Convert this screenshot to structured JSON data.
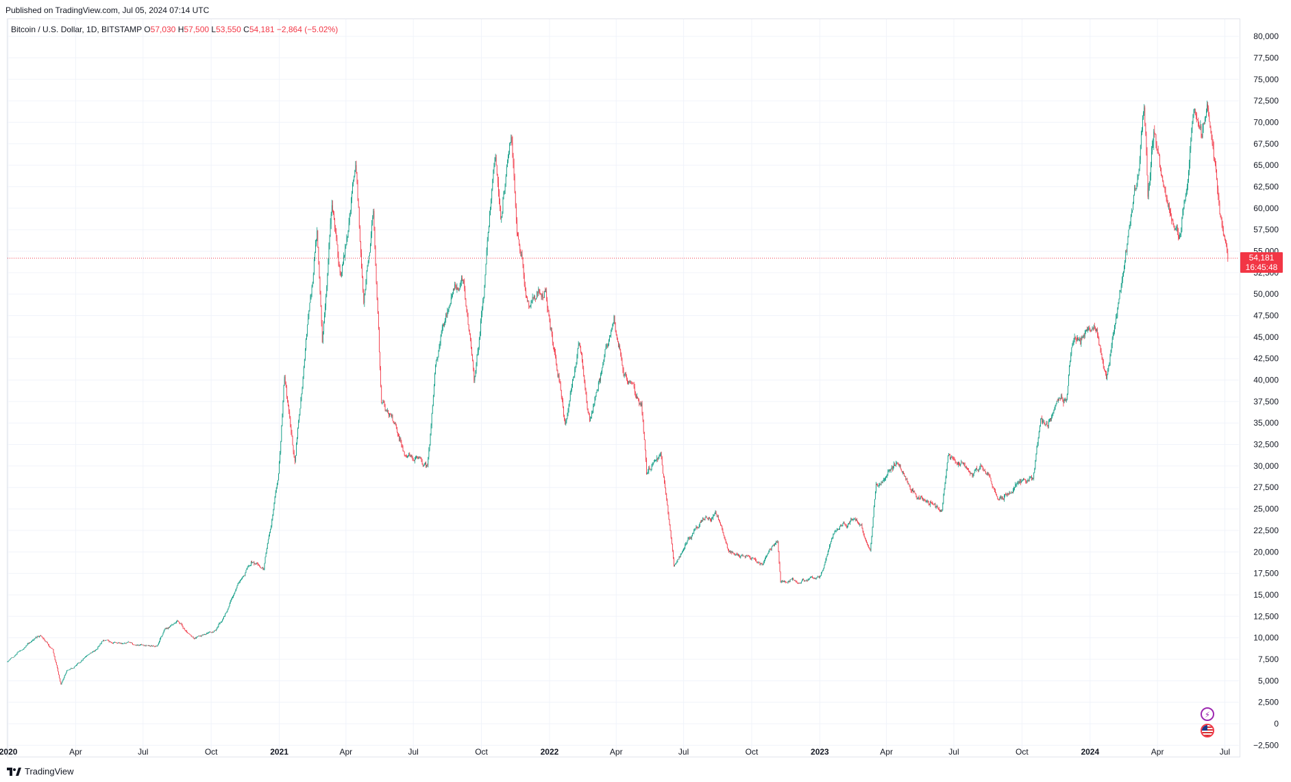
{
  "published": "Published on TradingView.com, Jul 05, 2024 07:14 UTC",
  "legend": {
    "symbol": "Bitcoin / U.S. Dollar, 1D, BITSTAMP",
    "o_label": "O",
    "o": "57,030",
    "h_label": "H",
    "h": "57,500",
    "l_label": "L",
    "l": "53,550",
    "c_label": "C",
    "c": "54,181",
    "change": "−2,864 (−5.02%)"
  },
  "price_tag": {
    "price": "54,181",
    "countdown": "16:45:48"
  },
  "footer": {
    "brand": "TradingView"
  },
  "colors": {
    "up": "#089981",
    "down": "#f23645",
    "grid": "#f0f3fa",
    "axis_text": "#131722"
  },
  "icons": [
    "tradingview-logo-icon",
    "lightning-icon",
    "us-flag-icon"
  ],
  "chart_data": {
    "type": "candlestick",
    "title": "Bitcoin / U.S. Dollar, 1D, BITSTAMP",
    "x_range": [
      "2019-12-31",
      "2024-07-20"
    ],
    "ylim": [
      -3750,
      82000
    ],
    "grid": true,
    "legend_position": "top-left",
    "y_ticks": [
      "80,000",
      "77,500",
      "75,000",
      "72,500",
      "70,000",
      "67,500",
      "65,000",
      "62,500",
      "60,000",
      "57,500",
      "55,000",
      "52,500",
      "50,000",
      "47,500",
      "45,000",
      "42,500",
      "40,000",
      "37,500",
      "35,000",
      "32,500",
      "30,000",
      "27,500",
      "25,000",
      "22,500",
      "20,000",
      "17,500",
      "15,000",
      "12,500",
      "10,000",
      "7,500",
      "5,000",
      "2,500",
      "0",
      "−2,500"
    ],
    "x_ticks": [
      {
        "label": "2020",
        "date": "2020-01-01",
        "bold": true
      },
      {
        "label": "Apr",
        "date": "2020-04-01"
      },
      {
        "label": "Jul",
        "date": "2020-07-01"
      },
      {
        "label": "Oct",
        "date": "2020-10-01"
      },
      {
        "label": "2021",
        "date": "2021-01-01",
        "bold": true
      },
      {
        "label": "Apr",
        "date": "2021-04-01"
      },
      {
        "label": "Jul",
        "date": "2021-07-01"
      },
      {
        "label": "Oct",
        "date": "2021-10-01"
      },
      {
        "label": "2022",
        "date": "2022-01-01",
        "bold": true
      },
      {
        "label": "Apr",
        "date": "2022-04-01"
      },
      {
        "label": "Jul",
        "date": "2022-07-01"
      },
      {
        "label": "Oct",
        "date": "2022-10-01"
      },
      {
        "label": "2023",
        "date": "2023-01-01",
        "bold": true
      },
      {
        "label": "Apr",
        "date": "2023-04-01"
      },
      {
        "label": "Jul",
        "date": "2023-07-01"
      },
      {
        "label": "Oct",
        "date": "2023-10-01"
      },
      {
        "label": "2024",
        "date": "2024-01-01",
        "bold": true
      },
      {
        "label": "Apr",
        "date": "2024-04-01"
      },
      {
        "label": "Jul",
        "date": "2024-07-01"
      }
    ],
    "last_price": 54181,
    "price_path": [
      [
        "2019-12-31",
        7200
      ],
      [
        "2020-01-20",
        8600
      ],
      [
        "2020-02-13",
        10400
      ],
      [
        "2020-03-01",
        8600
      ],
      [
        "2020-03-12",
        4500
      ],
      [
        "2020-03-20",
        6200
      ],
      [
        "2020-04-30",
        8800
      ],
      [
        "2020-05-08",
        9900
      ],
      [
        "2020-05-31",
        9500
      ],
      [
        "2020-06-15",
        9400
      ],
      [
        "2020-07-20",
        9200
      ],
      [
        "2020-07-31",
        11300
      ],
      [
        "2020-08-17",
        12200
      ],
      [
        "2020-09-08",
        10000
      ],
      [
        "2020-10-07",
        10700
      ],
      [
        "2020-10-21",
        12900
      ],
      [
        "2020-11-05",
        15600
      ],
      [
        "2020-11-24",
        19000
      ],
      [
        "2020-12-11",
        18100
      ],
      [
        "2020-12-31",
        29000
      ],
      [
        "2021-01-08",
        40500
      ],
      [
        "2021-01-22",
        30500
      ],
      [
        "2021-02-08",
        46000
      ],
      [
        "2021-02-21",
        57500
      ],
      [
        "2021-02-28",
        45000
      ],
      [
        "2021-03-13",
        61000
      ],
      [
        "2021-03-25",
        51500
      ],
      [
        "2021-04-14",
        63500
      ],
      [
        "2021-04-25",
        48500
      ],
      [
        "2021-05-08",
        58500
      ],
      [
        "2021-05-19",
        37000
      ],
      [
        "2021-05-31",
        36000
      ],
      [
        "2021-06-22",
        31500
      ],
      [
        "2021-07-20",
        30000
      ],
      [
        "2021-07-31",
        41500
      ],
      [
        "2021-08-14",
        47500
      ],
      [
        "2021-09-07",
        52000
      ],
      [
        "2021-09-21",
        40500
      ],
      [
        "2021-10-01",
        47500
      ],
      [
        "2021-10-20",
        66500
      ],
      [
        "2021-10-27",
        58500
      ],
      [
        "2021-11-10",
        68500
      ],
      [
        "2021-11-18",
        57000
      ],
      [
        "2021-12-04",
        48500
      ],
      [
        "2021-12-27",
        51000
      ],
      [
        "2022-01-22",
        35000
      ],
      [
        "2022-02-10",
        44500
      ],
      [
        "2022-02-24",
        35500
      ],
      [
        "2022-03-29",
        47500
      ],
      [
        "2022-04-11",
        40500
      ],
      [
        "2022-05-05",
        37000
      ],
      [
        "2022-05-12",
        28800
      ],
      [
        "2022-05-31",
        31800
      ],
      [
        "2022-06-13",
        22500
      ],
      [
        "2022-06-18",
        18500
      ],
      [
        "2022-07-08",
        21600
      ],
      [
        "2022-07-30",
        24500
      ],
      [
        "2022-08-14",
        24300
      ],
      [
        "2022-08-31",
        20000
      ],
      [
        "2022-10-15",
        19100
      ],
      [
        "2022-11-05",
        21300
      ],
      [
        "2022-11-09",
        16500
      ],
      [
        "2022-12-31",
        16600
      ],
      [
        "2023-01-21",
        23000
      ],
      [
        "2023-02-16",
        24500
      ],
      [
        "2023-03-10",
        20000
      ],
      [
        "2023-03-18",
        27500
      ],
      [
        "2023-04-14",
        30500
      ],
      [
        "2023-05-12",
        26300
      ],
      [
        "2023-06-15",
        25000
      ],
      [
        "2023-06-23",
        30800
      ],
      [
        "2023-08-16",
        29200
      ],
      [
        "2023-08-31",
        25900
      ],
      [
        "2023-10-16",
        28500
      ],
      [
        "2023-10-26",
        34500
      ],
      [
        "2023-11-30",
        37800
      ],
      [
        "2023-12-08",
        44000
      ],
      [
        "2024-01-11",
        46500
      ],
      [
        "2024-01-23",
        39500
      ],
      [
        "2024-02-15",
        52000
      ],
      [
        "2024-02-29",
        61500
      ],
      [
        "2024-03-05",
        63500
      ],
      [
        "2024-03-14",
        73500
      ],
      [
        "2024-03-19",
        62500
      ],
      [
        "2024-03-27",
        70000
      ],
      [
        "2024-04-13",
        60500
      ],
      [
        "2024-05-01",
        57500
      ],
      [
        "2024-05-20",
        71000
      ],
      [
        "2024-05-31",
        67500
      ],
      [
        "2024-06-07",
        71500
      ],
      [
        "2024-06-24",
        60000
      ],
      [
        "2024-07-05",
        54181
      ]
    ]
  }
}
